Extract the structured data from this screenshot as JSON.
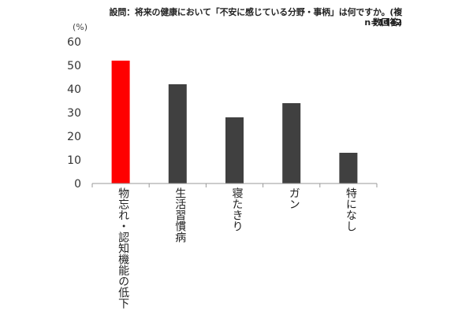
{
  "header": {
    "title": "設問：将来の健康において「不安に感じている分野・事柄」は何ですか。(複数回答)",
    "sample_size": "n=1442"
  },
  "chart_data": {
    "type": "bar",
    "title": "設問：将来の健康において「不安に感じている分野・事柄」は何ですか。(複数回答)",
    "subtitle": "n=1442",
    "ylabel": "(%)",
    "xlabel": "",
    "ylim": [
      0,
      60
    ],
    "yticks": [
      "0",
      "10",
      "20",
      "30",
      "40",
      "50",
      "60"
    ],
    "grid": false,
    "legend": "none",
    "categories": [
      "物忘れ・認知機能の低下",
      "生活習慣病",
      "寝たきり",
      "ガン",
      "特になし"
    ],
    "values": [
      52,
      42,
      28,
      34,
      13
    ],
    "colors": [
      "#ff0000",
      "#404040",
      "#404040",
      "#404040",
      "#404040"
    ]
  }
}
